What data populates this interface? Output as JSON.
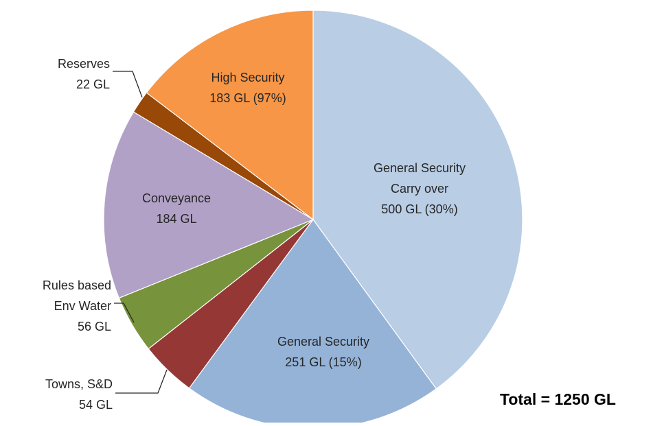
{
  "chart_data": {
    "type": "pie",
    "title": "",
    "total_label": "Total = 1250 GL",
    "slices": [
      {
        "name": "General Security Carry over",
        "value": 500,
        "color": "#B9CDE5",
        "label_lines": [
          "General Security",
          "Carry over",
          "500 GL (30%)"
        ]
      },
      {
        "name": "General Security",
        "value": 251,
        "color": "#95B3D7",
        "label_lines": [
          "General Security",
          "251 GL (15%)"
        ]
      },
      {
        "name": "Towns, S&D",
        "value": 54,
        "color": "#953735",
        "label_lines": [
          "Towns, S&D",
          "54 GL"
        ]
      },
      {
        "name": "Rules based Env Water",
        "value": 56,
        "color": "#77933C",
        "label_lines": [
          "Rules based",
          "Env Water",
          "56 GL"
        ]
      },
      {
        "name": "Conveyance",
        "value": 184,
        "color": "#B2A1C7",
        "label_lines": [
          "Conveyance",
          "184 GL"
        ]
      },
      {
        "name": "Reserves",
        "value": 22,
        "color": "#984807",
        "label_lines": [
          "Reserves",
          "22 GL"
        ]
      },
      {
        "name": "High Security",
        "value": 183,
        "color": "#F79646",
        "label_lines": [
          "High Security",
          "183 GL (97%)"
        ]
      }
    ],
    "start_angle_deg": 0,
    "direction": "clockwise"
  }
}
